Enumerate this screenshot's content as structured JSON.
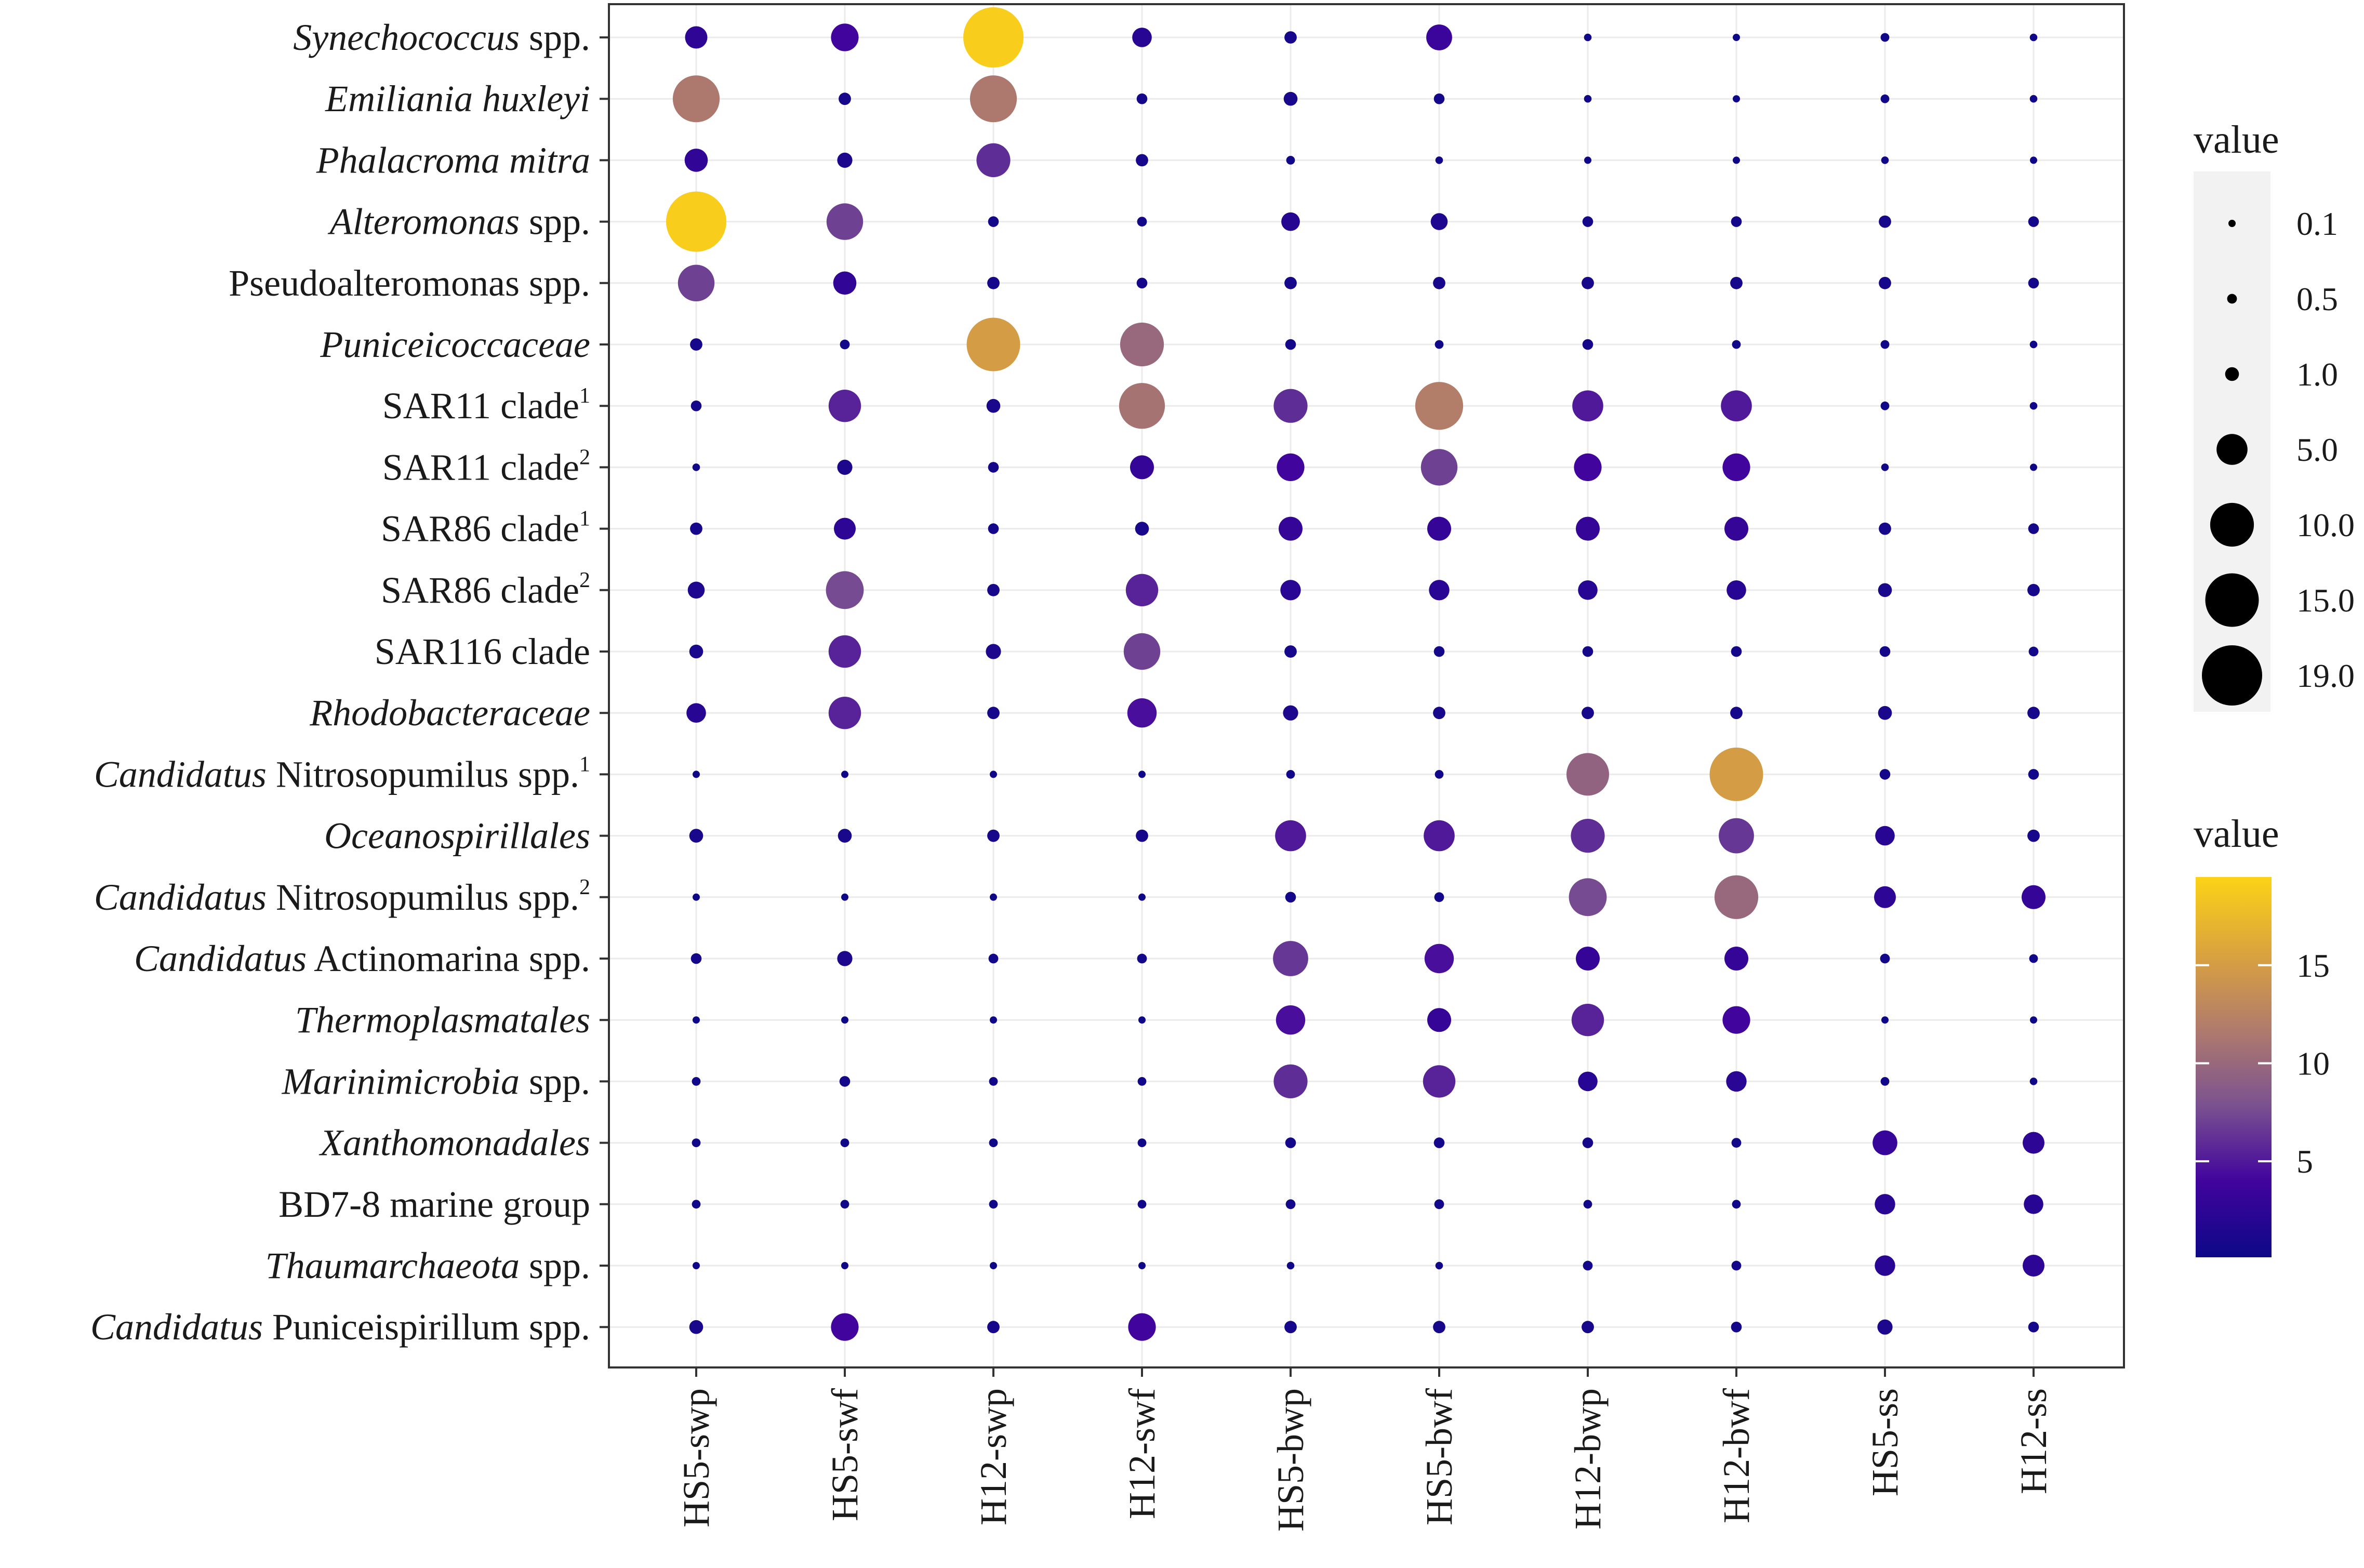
{
  "chart_data": {
    "type": "scatter",
    "subtype": "bubble",
    "xlabel": "",
    "ylabel": "",
    "columns": [
      "HS5-swp",
      "HS5-swf",
      "H12-swp",
      "H12-swf",
      "HS5-bwp",
      "HS5-bwf",
      "H12-bwp",
      "H12-bwf",
      "HS5-ss",
      "H12-ss"
    ],
    "rows": [
      {
        "parts": [
          {
            "t": "Synechococcus",
            "i": true
          },
          {
            "t": " spp.",
            "i": false
          }
        ],
        "values": [
          2.6,
          4.0,
          19.0,
          2.0,
          0.8,
          3.5,
          0.3,
          0.2,
          0.4,
          0.3
        ]
      },
      {
        "parts": [
          {
            "t": "Emiliania huxleyi",
            "i": true
          }
        ],
        "values": [
          11.5,
          0.8,
          11.5,
          0.6,
          1.0,
          0.6,
          0.3,
          0.2,
          0.4,
          0.3
        ]
      },
      {
        "parts": [
          {
            "t": "Phalacroma mitra",
            "i": true
          }
        ],
        "values": [
          2.8,
          1.2,
          6.0,
          0.8,
          0.4,
          0.3,
          0.2,
          0.15,
          0.3,
          0.2
        ]
      },
      {
        "parts": [
          {
            "t": "Alteromonas",
            "i": true
          },
          {
            "t": " spp.",
            "i": false
          }
        ],
        "values": [
          19.0,
          7.0,
          0.6,
          0.5,
          1.8,
          1.5,
          0.6,
          0.6,
          0.8,
          0.6
        ]
      },
      {
        "parts": [
          {
            "t": "Pseudoalteromonas spp.",
            "i": false
          }
        ],
        "values": [
          7.0,
          2.8,
          0.8,
          0.6,
          0.8,
          0.8,
          0.8,
          0.8,
          0.8,
          0.6
        ]
      },
      {
        "parts": [
          {
            "t": "Puniceicoccaceae",
            "i": true
          }
        ],
        "values": [
          0.8,
          0.5,
          15.0,
          10.0,
          0.6,
          0.4,
          0.6,
          0.4,
          0.4,
          0.3
        ]
      },
      {
        "parts": [
          {
            "t": "SAR11 clade",
            "i": false
          },
          {
            "t": "1",
            "sup": true
          }
        ],
        "values": [
          0.6,
          5.5,
          1.0,
          11.0,
          6.0,
          12.0,
          5.0,
          5.0,
          0.4,
          0.3
        ]
      },
      {
        "parts": [
          {
            "t": "SAR11 clade",
            "i": false
          },
          {
            "t": "2",
            "sup": true
          }
        ],
        "values": [
          0.3,
          1.2,
          0.6,
          3.0,
          4.0,
          7.0,
          4.0,
          4.0,
          0.3,
          0.2
        ]
      },
      {
        "parts": [
          {
            "t": "SAR86 clade",
            "i": false
          },
          {
            "t": "1",
            "sup": true
          }
        ],
        "values": [
          0.8,
          2.5,
          0.6,
          1.0,
          3.0,
          3.0,
          3.0,
          3.0,
          0.8,
          0.6
        ]
      },
      {
        "parts": [
          {
            "t": "SAR86 clade",
            "i": false
          },
          {
            "t": "2",
            "sup": true
          }
        ],
        "values": [
          1.5,
          7.5,
          0.8,
          5.5,
          2.2,
          2.2,
          2.0,
          2.0,
          1.0,
          0.8
        ]
      },
      {
        "parts": [
          {
            "t": "SAR116 clade",
            "i": false
          }
        ],
        "values": [
          1.0,
          5.5,
          1.2,
          7.0,
          0.8,
          0.6,
          0.6,
          0.6,
          0.6,
          0.5
        ]
      },
      {
        "parts": [
          {
            "t": "Rhodobacteraceae",
            "i": true
          }
        ],
        "values": [
          2.0,
          5.5,
          0.8,
          4.5,
          1.2,
          0.8,
          0.8,
          0.8,
          1.0,
          0.8
        ]
      },
      {
        "parts": [
          {
            "t": "Candidatus",
            "i": true
          },
          {
            "t": " Nitrosopumilus spp.",
            "i": false
          },
          {
            "t": "1",
            "sup": true
          }
        ],
        "values": [
          0.2,
          0.2,
          0.2,
          0.2,
          0.4,
          0.4,
          9.5,
          15.0,
          0.6,
          0.6
        ]
      },
      {
        "parts": [
          {
            "t": "Oceanospirillales",
            "i": true
          }
        ],
        "values": [
          1.0,
          1.0,
          0.8,
          0.8,
          5.0,
          5.0,
          6.0,
          6.5,
          2.0,
          0.8
        ]
      },
      {
        "parts": [
          {
            "t": "Candidatus",
            "i": true
          },
          {
            "t": " Nitrosopumilus spp.",
            "i": false
          },
          {
            "t": "2",
            "sup": true
          }
        ],
        "values": [
          0.15,
          0.15,
          0.15,
          0.15,
          0.6,
          0.5,
          7.5,
          10.0,
          2.5,
          3.0
        ]
      },
      {
        "parts": [
          {
            "t": "Candidatus",
            "i": true
          },
          {
            "t": " Actinomarina spp.",
            "i": false
          }
        ],
        "values": [
          0.6,
          1.2,
          0.5,
          0.5,
          6.5,
          4.5,
          3.0,
          3.0,
          0.5,
          0.4
        ]
      },
      {
        "parts": [
          {
            "t": "Thermoplasmatales",
            "i": true
          }
        ],
        "values": [
          0.2,
          0.2,
          0.2,
          0.2,
          4.5,
          3.0,
          5.5,
          4.0,
          0.2,
          0.2
        ]
      },
      {
        "parts": [
          {
            "t": "Marinimicrobia",
            "i": true
          },
          {
            "t": " spp.",
            "i": false
          }
        ],
        "values": [
          0.4,
          0.6,
          0.4,
          0.4,
          6.0,
          5.5,
          2.0,
          2.2,
          0.4,
          0.3
        ]
      },
      {
        "parts": [
          {
            "t": "Xanthomonadales",
            "i": true
          }
        ],
        "values": [
          0.4,
          0.4,
          0.4,
          0.4,
          0.6,
          0.6,
          0.6,
          0.5,
          3.2,
          2.5
        ]
      },
      {
        "parts": [
          {
            "t": "BD7-8 marine group",
            "i": false
          }
        ],
        "values": [
          0.4,
          0.4,
          0.4,
          0.4,
          0.5,
          0.5,
          0.4,
          0.4,
          2.2,
          2.0
        ]
      },
      {
        "parts": [
          {
            "t": "Thaumarchaeota",
            "i": true
          },
          {
            "t": " spp.",
            "i": false
          }
        ],
        "values": [
          0.2,
          0.15,
          0.15,
          0.15,
          0.3,
          0.3,
          0.5,
          0.5,
          2.2,
          2.5
        ]
      },
      {
        "parts": [
          {
            "t": "Candidatus",
            "i": true
          },
          {
            "t": " Puniceispirillum spp.",
            "i": false
          }
        ],
        "values": [
          1.0,
          4.0,
          0.8,
          4.0,
          0.8,
          0.8,
          0.8,
          0.6,
          1.2,
          0.6
        ]
      }
    ],
    "size_legend": {
      "title": "value",
      "breaks": [
        0.1,
        0.5,
        1.0,
        5.0,
        10.0,
        15.0,
        19.0
      ],
      "labels": [
        "0.1",
        "0.5",
        "1.0",
        "5.0",
        "10.0",
        "15.0",
        "19.0"
      ]
    },
    "color_legend": {
      "title": "value",
      "range": [
        0.1,
        19.5
      ],
      "ticks": [
        5,
        10,
        15
      ],
      "tick_labels": [
        "5",
        "10",
        "15"
      ]
    },
    "colors": [
      "#0d0887",
      "#41049d",
      "#7b5290",
      "#b07b6c",
      "#dba33e",
      "#fcd316"
    ],
    "grid": true
  }
}
